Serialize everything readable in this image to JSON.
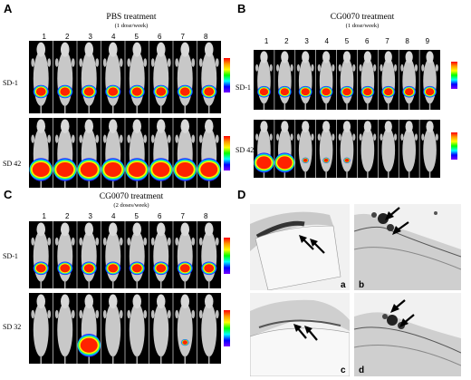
{
  "panels": {
    "A": {
      "letter": "A",
      "title": "PBS treatment",
      "subtitle": "(1 dose/week)",
      "numbers": [
        "1",
        "2",
        "3",
        "4",
        "5",
        "6",
        "7",
        "8"
      ],
      "rows": [
        "SD-1",
        "SD 42"
      ]
    },
    "B": {
      "letter": "B",
      "title": "CG0070 treatment",
      "subtitle": "(1 dose/week)",
      "numbers": [
        "1",
        "2",
        "3",
        "4",
        "5",
        "6",
        "7",
        "8",
        "9"
      ],
      "rows": [
        "SD-1",
        "SD 42"
      ]
    },
    "C": {
      "letter": "C",
      "title": "CG0070 treatment",
      "subtitle": "(2 doses/week)",
      "numbers": [
        "1",
        "2",
        "3",
        "4",
        "5",
        "6",
        "7",
        "8"
      ],
      "rows": [
        "SD-1",
        "SD 32"
      ]
    },
    "D": {
      "letter": "D",
      "sub_letters": [
        "a",
        "b",
        "c",
        "d"
      ]
    }
  }
}
